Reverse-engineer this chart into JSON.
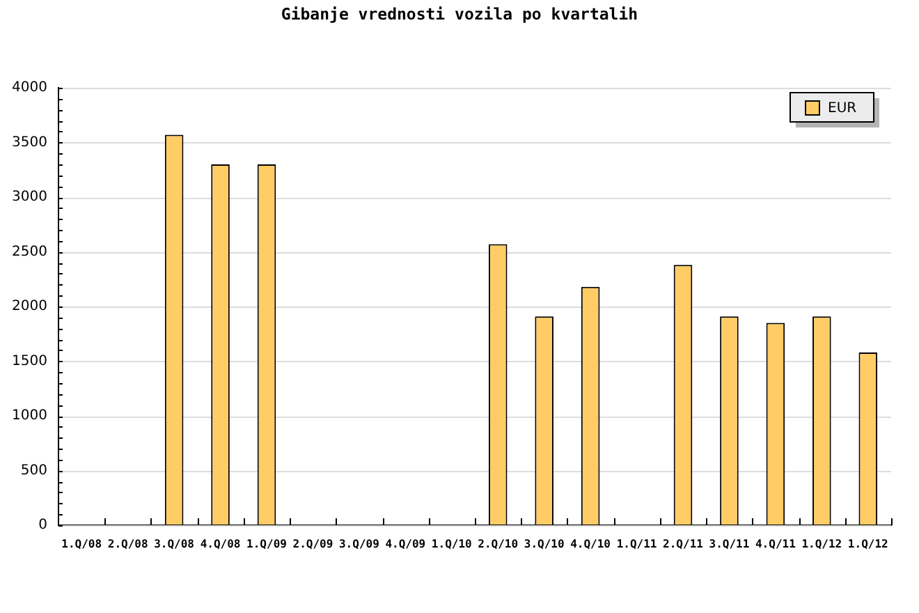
{
  "chart_data": {
    "type": "bar",
    "title": "Gibanje vrednosti vozila po kvartalih",
    "categories": [
      "1.Q/08",
      "2.Q/08",
      "3.Q/08",
      "4.Q/08",
      "1.Q/09",
      "2.Q/09",
      "3.Q/09",
      "4.Q/09",
      "1.Q/10",
      "2.Q/10",
      "3.Q/10",
      "4.Q/10",
      "1.Q/11",
      "2.Q/11",
      "3.Q/11",
      "4.Q/11",
      "1.Q/12",
      "1.Q/12"
    ],
    "series": [
      {
        "name": "EUR",
        "color": "#ffcc66",
        "values": [
          null,
          null,
          3570,
          3300,
          3300,
          null,
          null,
          null,
          null,
          2570,
          1910,
          2180,
          null,
          2380,
          1910,
          1850,
          1910,
          1580
        ]
      }
    ],
    "ylim": [
      0,
      4000
    ],
    "yticks": [
      0,
      {
        "value": 100,
        "label": null
      },
      {
        "value": 200,
        "label": null
      },
      {
        "value": 300,
        "label": null
      },
      {
        "value": 400,
        "label": null
      },
      500,
      {
        "value": 600,
        "label": null
      },
      {
        "value": 700,
        "label": null
      },
      {
        "value": 800,
        "label": null
      },
      {
        "value": 900,
        "label": null
      },
      1000,
      {
        "value": 1100,
        "label": null
      },
      {
        "value": 1200,
        "label": null
      },
      {
        "value": 1300,
        "label": null
      },
      {
        "value": 1400,
        "label": null
      },
      1500,
      {
        "value": 1600,
        "label": null
      },
      {
        "value": 1700,
        "label": null
      },
      {
        "value": 1800,
        "label": null
      },
      {
        "value": 1900,
        "label": null
      },
      2000,
      {
        "value": 2100,
        "label": null
      },
      {
        "value": 2200,
        "label": null
      },
      {
        "value": 2300,
        "label": null
      },
      {
        "value": 2400,
        "label": null
      },
      2500,
      {
        "value": 2600,
        "label": null
      },
      {
        "value": 2700,
        "label": null
      },
      {
        "value": 2800,
        "label": null
      },
      {
        "value": 2900,
        "label": null
      },
      3000,
      {
        "value": 3100,
        "label": null
      },
      {
        "value": 3200,
        "label": null
      },
      {
        "value": 3300,
        "label": null
      },
      {
        "value": 3400,
        "label": null
      },
      3500,
      {
        "value": 3600,
        "label": null
      },
      {
        "value": 3700,
        "label": null
      },
      {
        "value": 3800,
        "label": null
      },
      {
        "value": 3900,
        "label": null
      },
      4000
    ],
    "grid": "y",
    "legend": "top right"
  }
}
